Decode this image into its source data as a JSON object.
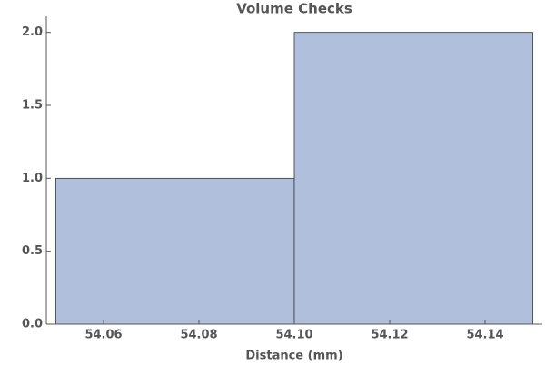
{
  "chart_data": {
    "type": "histogram",
    "title": "Volume Checks",
    "x_label": "Distance  (mm)",
    "bins": [
      54.05,
      54.1,
      54.15
    ],
    "counts": [
      1,
      2
    ],
    "color": "#b0c0dc",
    "xlim": [
      54.048,
      54.152
    ],
    "xticks": [
      54.06,
      54.08,
      {
        "value": 54.1,
        "label": "54.10"
      },
      54.12,
      54.14
    ],
    "ylim": [
      0,
      2.11
    ],
    "yticks": [
      {
        "value": 0,
        "label": "0.0"
      },
      0.5,
      {
        "value": 1,
        "label": "1.0"
      },
      1.5,
      {
        "value": 2,
        "label": "2.0"
      }
    ]
  }
}
